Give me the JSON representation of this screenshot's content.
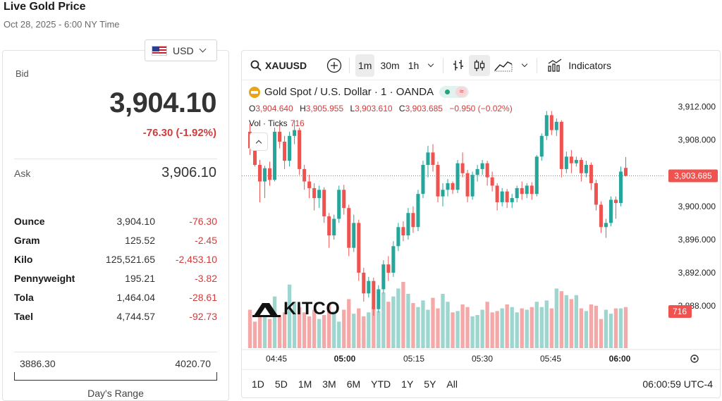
{
  "page": {
    "title": "Live Gold Price",
    "time": "Oct 28, 2025 - 6:00 NY Time"
  },
  "currency": {
    "selected": "USD",
    "flag_icon": "us-flag-icon"
  },
  "quote": {
    "bid_label": "Bid",
    "bid": "3,904.10",
    "change": "-76.30 (-1.92%)",
    "ask_label": "Ask",
    "ask": "3,906.10",
    "units": [
      {
        "name": "Ounce",
        "price": "3,904.10",
        "change": "-76.30"
      },
      {
        "name": "Gram",
        "price": "125.52",
        "change": "-2.45"
      },
      {
        "name": "Kilo",
        "price": "125,521.65",
        "change": "-2,453.10"
      },
      {
        "name": "Pennyweight",
        "price": "195.21",
        "change": "-3.82"
      },
      {
        "name": "Tola",
        "price": "1,464.04",
        "change": "-28.61"
      },
      {
        "name": "Tael",
        "price": "4,744.57",
        "change": "-92.73"
      }
    ],
    "range": {
      "low": "3886.30",
      "high": "4020.70",
      "label": "Day's Range"
    }
  },
  "toolbar": {
    "symbol": "XAUUSD",
    "intervals": [
      "1m",
      "30m",
      "1h"
    ],
    "active_interval": "1m",
    "indicators_label": "Indicators"
  },
  "legend": {
    "title": "Gold Spot / U.S. Dollar · 1 · OANDA",
    "ohlc": [
      {
        "k": "O",
        "v": "3,904.640"
      },
      {
        "k": "H",
        "v": "3,905.955"
      },
      {
        "k": "L",
        "v": "3,903.610"
      },
      {
        "k": "C",
        "v": "3,903.685"
      },
      {
        "k": "",
        "v": "−0.950 (−0.02%)"
      }
    ],
    "vol_label": "Vol · Ticks",
    "vol_value": "716",
    "wave_glyph": "≈"
  },
  "range_buttons": [
    "1D",
    "5D",
    "1M",
    "3M",
    "6M",
    "YTD",
    "1Y",
    "5Y",
    "All"
  ],
  "clock": "06:00:59 UTC-4",
  "logo_text": "KITCO",
  "chart_data": {
    "type": "candlestick",
    "y_ticks": [
      "3,912.000",
      "3,908.000",
      "3,904.000",
      "3,900.000",
      "3,896.000",
      "3,892.000",
      "3,888.000"
    ],
    "y_tick_values": [
      3912,
      3908,
      3904,
      3900,
      3896,
      3892,
      3888
    ],
    "ylim": [
      3886.3,
      3915.2
    ],
    "x_ticks": [
      "04:45",
      "05:00",
      "05:15",
      "05:30",
      "05:45",
      "06:00"
    ],
    "x_ticks_bold": [
      "05:00",
      "06:00"
    ],
    "last_price": "3,903.685",
    "last_price_value": 3903.685,
    "last_volume": "716",
    "up_color": "#26a69a",
    "down_color": "#ef5350",
    "candles": [
      [
        3909.0,
        3910.0,
        3906.2,
        3907.0
      ],
      [
        3907.0,
        3907.6,
        3904.8,
        3905.0
      ],
      [
        3905.0,
        3905.6,
        3900.5,
        3903.0
      ],
      [
        3903.0,
        3904.9,
        3901.0,
        3904.6
      ],
      [
        3904.6,
        3905.4,
        3902.5,
        3903.2
      ],
      [
        3903.2,
        3909.5,
        3903.0,
        3909.0
      ],
      [
        3909.0,
        3909.8,
        3907.0,
        3907.8
      ],
      [
        3907.8,
        3908.5,
        3904.5,
        3905.5
      ],
      [
        3905.5,
        3909.0,
        3904.8,
        3908.5
      ],
      [
        3908.5,
        3910.4,
        3907.5,
        3909.2
      ],
      [
        3909.2,
        3909.5,
        3903.8,
        3904.5
      ],
      [
        3904.5,
        3905.0,
        3902.0,
        3903.0
      ],
      [
        3903.0,
        3903.8,
        3901.0,
        3902.2
      ],
      [
        3902.2,
        3902.8,
        3899.5,
        3901.0
      ],
      [
        3901.0,
        3902.5,
        3899.8,
        3902.0
      ],
      [
        3902.0,
        3902.3,
        3898.0,
        3898.8
      ],
      [
        3898.8,
        3899.2,
        3895.0,
        3896.5
      ],
      [
        3896.5,
        3899.0,
        3896.0,
        3898.5
      ],
      [
        3898.5,
        3902.5,
        3898.0,
        3902.0
      ],
      [
        3902.0,
        3902.6,
        3899.0,
        3899.8
      ],
      [
        3899.8,
        3900.2,
        3894.0,
        3895.0
      ],
      [
        3895.0,
        3899.0,
        3894.5,
        3898.0
      ],
      [
        3898.0,
        3898.4,
        3891.0,
        3892.0
      ],
      [
        3892.0,
        3892.6,
        3888.5,
        3889.5
      ],
      [
        3889.5,
        3891.5,
        3889.0,
        3891.0
      ],
      [
        3891.0,
        3891.4,
        3886.8,
        3887.6
      ],
      [
        3887.6,
        3890.5,
        3887.2,
        3890.0
      ],
      [
        3890.0,
        3893.5,
        3889.5,
        3893.0
      ],
      [
        3893.0,
        3894.0,
        3891.0,
        3892.0
      ],
      [
        3892.0,
        3895.8,
        3891.5,
        3895.2
      ],
      [
        3895.2,
        3898.0,
        3894.6,
        3897.5
      ],
      [
        3897.5,
        3898.2,
        3895.8,
        3896.5
      ],
      [
        3896.5,
        3899.8,
        3896.0,
        3899.2
      ],
      [
        3899.2,
        3900.0,
        3896.8,
        3897.5
      ],
      [
        3897.5,
        3902.0,
        3897.0,
        3901.5
      ],
      [
        3901.5,
        3905.5,
        3901.0,
        3905.0
      ],
      [
        3905.0,
        3907.3,
        3903.5,
        3906.5
      ],
      [
        3906.5,
        3907.5,
        3904.2,
        3905.0
      ],
      [
        3905.0,
        3905.4,
        3900.5,
        3901.2
      ],
      [
        3901.2,
        3902.8,
        3900.0,
        3902.0
      ],
      [
        3902.0,
        3903.3,
        3901.2,
        3902.8
      ],
      [
        3902.8,
        3903.0,
        3901.5,
        3902.0
      ],
      [
        3902.0,
        3905.6,
        3901.6,
        3905.2
      ],
      [
        3905.2,
        3906.5,
        3903.5,
        3904.0
      ],
      [
        3904.0,
        3904.4,
        3900.5,
        3901.2
      ],
      [
        3901.2,
        3904.2,
        3900.8,
        3903.8
      ],
      [
        3903.8,
        3905.0,
        3903.0,
        3904.5
      ],
      [
        3904.5,
        3905.6,
        3903.8,
        3905.2
      ],
      [
        3905.2,
        3905.5,
        3902.5,
        3903.5
      ],
      [
        3903.5,
        3904.2,
        3901.8,
        3902.5
      ],
      [
        3902.5,
        3902.8,
        3899.5,
        3900.5
      ],
      [
        3900.5,
        3902.2,
        3900.0,
        3901.8
      ],
      [
        3901.8,
        3902.1,
        3899.8,
        3900.5
      ],
      [
        3900.5,
        3901.5,
        3899.8,
        3901.0
      ],
      [
        3901.0,
        3902.5,
        3900.5,
        3902.2
      ],
      [
        3902.2,
        3903.0,
        3900.8,
        3901.5
      ],
      [
        3901.5,
        3902.8,
        3901.0,
        3902.5
      ],
      [
        3902.5,
        3902.9,
        3900.8,
        3901.5
      ],
      [
        3901.5,
        3906.2,
        3901.2,
        3906.0
      ],
      [
        3906.0,
        3908.8,
        3905.5,
        3908.5
      ],
      [
        3908.5,
        3911.5,
        3908.0,
        3911.0
      ],
      [
        3911.0,
        3911.5,
        3908.6,
        3909.2
      ],
      [
        3909.2,
        3910.6,
        3908.5,
        3910.2
      ],
      [
        3910.2,
        3910.4,
        3903.5,
        3904.5
      ],
      [
        3904.5,
        3906.6,
        3904.0,
        3906.0
      ],
      [
        3906.0,
        3906.8,
        3904.0,
        3905.2
      ],
      [
        3905.2,
        3906.0,
        3904.8,
        3905.6
      ],
      [
        3905.6,
        3905.9,
        3903.0,
        3904.0
      ],
      [
        3904.0,
        3905.5,
        3903.5,
        3905.0
      ],
      [
        3905.0,
        3905.3,
        3902.0,
        3902.8
      ],
      [
        3902.8,
        3903.2,
        3899.5,
        3900.2
      ],
      [
        3900.2,
        3900.6,
        3896.8,
        3897.5
      ],
      [
        3897.5,
        3898.5,
        3896.2,
        3898.0
      ],
      [
        3898.0,
        3901.2,
        3897.6,
        3900.8
      ],
      [
        3900.8,
        3901.2,
        3898.5,
        3900.4
      ],
      [
        3900.4,
        3904.8,
        3900.0,
        3904.2
      ],
      [
        3904.64,
        3905.955,
        3903.61,
        3903.685
      ]
    ],
    "volumes": [
      58,
      40,
      52,
      66,
      44,
      78,
      50,
      54,
      96,
      70,
      62,
      54,
      48,
      58,
      44,
      50,
      66,
      56,
      40,
      58,
      74,
      52,
      60,
      48,
      54,
      62,
      56,
      84,
      70,
      78,
      90,
      100,
      82,
      68,
      62,
      72,
      58,
      76,
      60,
      82,
      70,
      54,
      56,
      66,
      62,
      48,
      50,
      58,
      70,
      54,
      56,
      60,
      66,
      62,
      54,
      60,
      58,
      62,
      70,
      62,
      72,
      60,
      90,
      86,
      80,
      74,
      80,
      60,
      56,
      66,
      64,
      44,
      58,
      52,
      60,
      60,
      62
    ],
    "volume_max": 100
  }
}
